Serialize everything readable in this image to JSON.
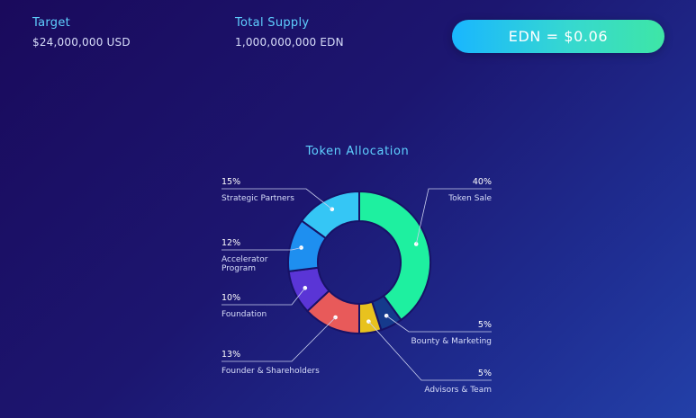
{
  "stats": {
    "target": {
      "label": "Target",
      "value": "$24,000,000 USD"
    },
    "total_supply": {
      "label": "Total Supply",
      "value": "1,000,000,000 EDN"
    }
  },
  "price_button": {
    "label": "EDN = $0.06"
  },
  "colors": {
    "accent_text": "#5fd0ff",
    "label_text": "#d8defa"
  },
  "chart_data": {
    "type": "pie",
    "donut": true,
    "title": "Token Allocation",
    "unit": "%",
    "slices": [
      {
        "label": "Token Sale",
        "value": 40,
        "value_label": "40%",
        "color": "#1ef0a0"
      },
      {
        "label": "Bounty & Marketing",
        "value": 5,
        "value_label": "5%",
        "color": "#153a8c"
      },
      {
        "label": "Advisors & Team",
        "value": 5,
        "value_label": "5%",
        "color": "#e8c21e"
      },
      {
        "label": "Founder & Shareholders",
        "value": 13,
        "value_label": "13%",
        "color": "#e85a5a"
      },
      {
        "label": "Foundation",
        "value": 10,
        "value_label": "10%",
        "color": "#5a35d6"
      },
      {
        "label": "Accelerator Program",
        "value": 12,
        "value_label": "12%",
        "color": "#1e8ff0"
      },
      {
        "label": "Strategic Partners",
        "value": 15,
        "value_label": "15%",
        "color": "#35c6f5"
      }
    ]
  }
}
